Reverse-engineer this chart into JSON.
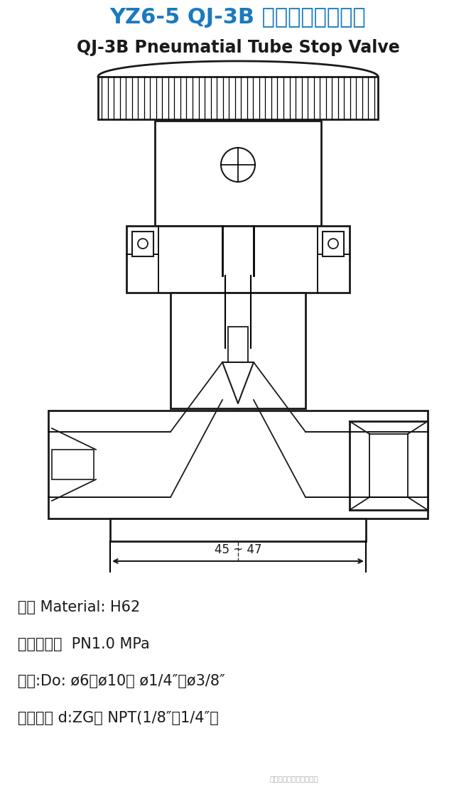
{
  "title_cn": "YZ6-5 QJ-3B 型气动管路截止阀",
  "title_en": "QJ-3B Pneumatial Tube Stop Valve",
  "title_cn_color": "#1a7abf",
  "title_en_color": "#1a1a1a",
  "bg_color": "#ffffff",
  "line_color": "#1a1a1a",
  "dim_text": "45 ~ 47",
  "info_lines": [
    "材料 Material: H62",
    "公称压力：  PN1.0 MPa",
    "配管:Do: ø6～ø10、 ø1/4″～ø3/8″",
    "终端螺纹 d:ZG、 NPT(1/8″～1/4″）"
  ],
  "watermark": "镇江市华佳电气有限公司"
}
